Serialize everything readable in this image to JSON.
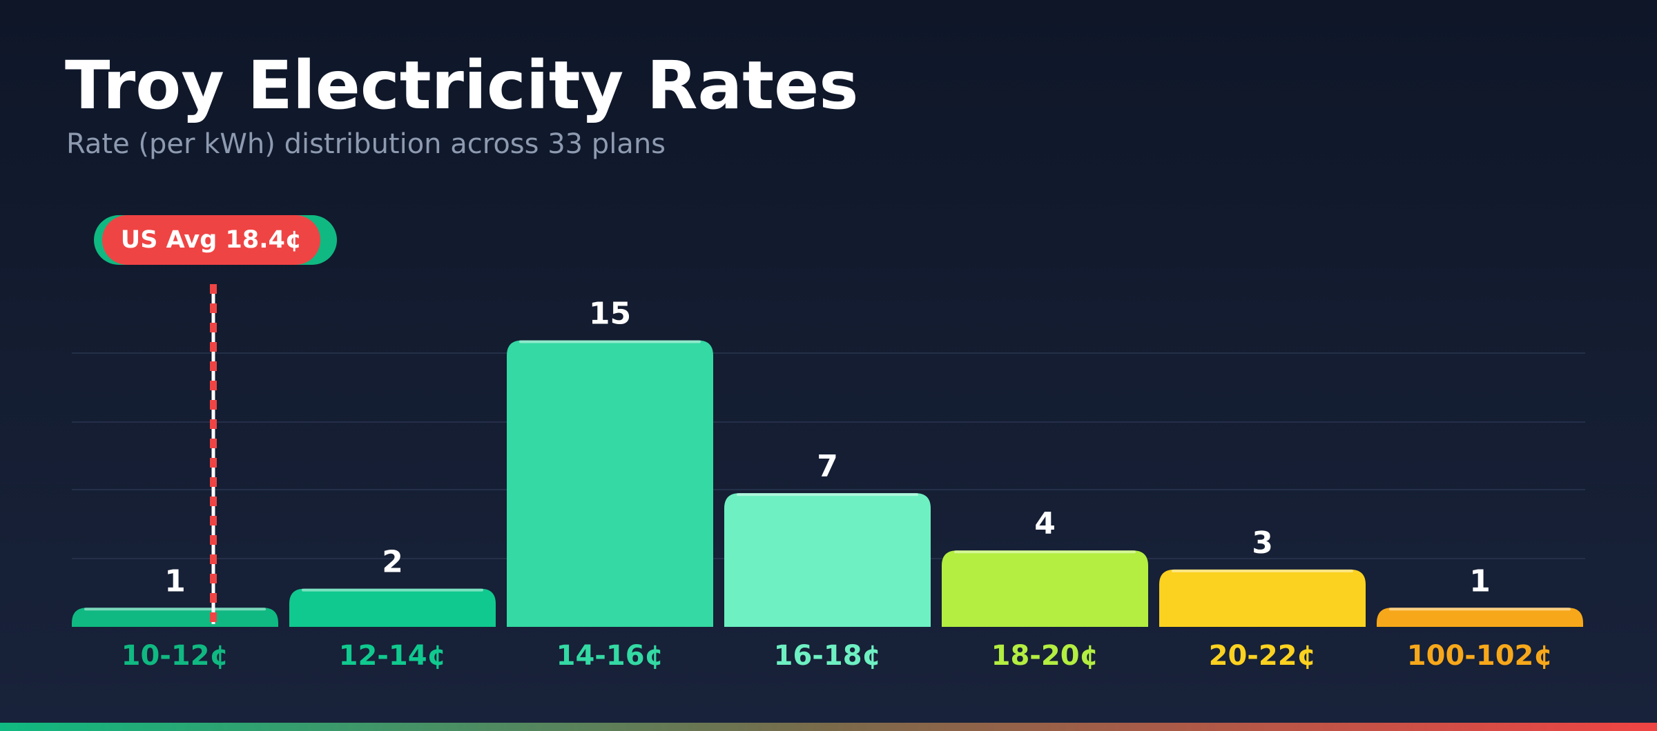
{
  "title": "Troy Electricity Rates",
  "subtitle": "Rate (per kWh) distribution across 33 plans",
  "reference_line": {
    "label": "US Avg 18.4¢",
    "value_cents": 18.4,
    "color": "#ef4444"
  },
  "chart_data": {
    "type": "bar",
    "title": "Troy Electricity Rates",
    "subtitle": "Rate (per kWh) distribution across 33 plans",
    "xlabel": "",
    "ylabel": "",
    "categories": [
      "10-12¢",
      "12-14¢",
      "14-16¢",
      "16-18¢",
      "18-20¢",
      "20-22¢",
      "100-102¢"
    ],
    "values": [
      1,
      2,
      15,
      7,
      4,
      3,
      1
    ],
    "colors": [
      "#10b981",
      "#10c98e",
      "#34d9a3",
      "#6ef0c2",
      "#b3ee41",
      "#fcd220",
      "#f7a81a"
    ],
    "ylim": [
      0,
      15
    ],
    "grid": true,
    "data_labels": true
  }
}
